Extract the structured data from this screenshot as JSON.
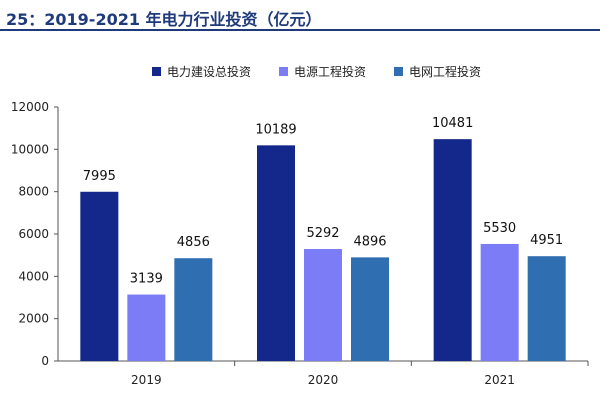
{
  "title": "25：2019-2021 年电力行业投资（亿元）",
  "colors": {
    "series_1": "#14288c",
    "series_2": "#7b7cf6",
    "series_3": "#2f6eb0",
    "title": "#1f3a7a",
    "axis": "#555555"
  },
  "chart_data": {
    "type": "bar",
    "title": "25：2019-2021 年电力行业投资（亿元）",
    "xlabel": "",
    "ylabel": "",
    "categories": [
      "2019",
      "2020",
      "2021"
    ],
    "series": [
      {
        "name": "电力建设总投资",
        "values": [
          7995,
          10189,
          10481
        ]
      },
      {
        "name": "电源工程投资",
        "values": [
          3139,
          5292,
          5530
        ]
      },
      {
        "name": "电网工程投资",
        "values": [
          4856,
          4896,
          4951
        ]
      }
    ],
    "ylim": [
      0,
      12000
    ],
    "yticks": [
      "0",
      "2000",
      "4000",
      "6000",
      "8000",
      "10000",
      "12000"
    ],
    "grid": false,
    "legend": "top-center"
  }
}
